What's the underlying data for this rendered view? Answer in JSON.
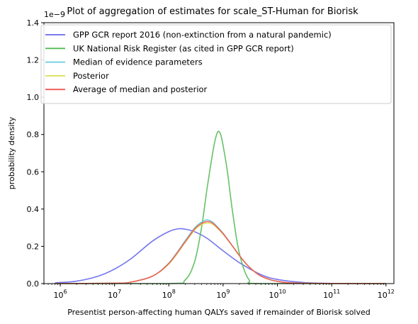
{
  "chart_data": {
    "type": "line",
    "title": "Plot of aggregation of estimates for scale_ST-Human for Biorisk",
    "xlabel": "Presentist person-affecting human QALYs saved if remainder of Biorisk solved",
    "ylabel": "probability density",
    "y_offset_text": "1e−9",
    "x_scale": "log",
    "xlim": [
      500000,
      1400000000000
    ],
    "ylim": [
      0,
      1.4
    ],
    "x_ticks": [
      {
        "value": 1000000,
        "base": "10",
        "exp": "6"
      },
      {
        "value": 10000000,
        "base": "10",
        "exp": "7"
      },
      {
        "value": 100000000,
        "base": "10",
        "exp": "8"
      },
      {
        "value": 1000000000,
        "base": "10",
        "exp": "9"
      },
      {
        "value": 10000000000,
        "base": "10",
        "exp": "10"
      },
      {
        "value": 100000000000,
        "base": "10",
        "exp": "11"
      },
      {
        "value": 1000000000000,
        "base": "10",
        "exp": "12"
      }
    ],
    "y_ticks": [
      {
        "value": 0.0,
        "label": "0.0"
      },
      {
        "value": 0.2,
        "label": "0.2"
      },
      {
        "value": 0.4,
        "label": "0.4"
      },
      {
        "value": 0.6,
        "label": "0.6"
      },
      {
        "value": 0.8,
        "label": "0.8"
      },
      {
        "value": 1.0,
        "label": "1.0"
      },
      {
        "value": 1.2,
        "label": "1.2"
      },
      {
        "value": 1.4,
        "label": "1.4"
      }
    ],
    "grid": false,
    "legend_position": "top-right",
    "series": [
      {
        "name": "GPP GCR report 2016 (non-extinction from a natural pandemic)",
        "color": "#6666ee",
        "x": [
          800000,
          2000000,
          5000000,
          10000000,
          20000000,
          50000000,
          100000000,
          150000000,
          200000000,
          300000000,
          500000000,
          1000000000,
          2000000000,
          5000000000,
          10000000000,
          30000000000,
          100000000000,
          300000000000,
          1000000000000
        ],
        "y": [
          0.004,
          0.013,
          0.04,
          0.078,
          0.133,
          0.228,
          0.279,
          0.294,
          0.292,
          0.278,
          0.244,
          0.176,
          0.112,
          0.048,
          0.022,
          0.006,
          0.001,
          0.0003,
          0.0001
        ]
      },
      {
        "name": "UK National Risk Register (as cited in GPP GCR report)",
        "color": "#55bb55",
        "x": [
          800000,
          100000000,
          200000000,
          300000000,
          400000000,
          500000000,
          600000000,
          700000000,
          800000000,
          900000000,
          1000000000,
          1200000000,
          1500000000,
          2000000000,
          3000000000,
          5000000000,
          1000000000000
        ],
        "y": [
          0,
          0.0,
          0.02,
          0.12,
          0.3,
          0.5,
          0.65,
          0.76,
          0.815,
          0.8,
          0.74,
          0.6,
          0.38,
          0.16,
          0.02,
          0.0,
          0.0
        ]
      },
      {
        "name": "Median of evidence parameters",
        "color": "#66ccdd",
        "x": [
          800000,
          10000000,
          20000000,
          50000000,
          100000000,
          200000000,
          300000000,
          400000000,
          500000000,
          600000000,
          700000000,
          1000000000,
          1500000000,
          2000000000,
          3000000000,
          5000000000,
          10000000000,
          30000000000,
          1000000000000
        ],
        "y": [
          0.0,
          0.002,
          0.008,
          0.04,
          0.11,
          0.23,
          0.3,
          0.33,
          0.342,
          0.335,
          0.32,
          0.27,
          0.2,
          0.15,
          0.09,
          0.04,
          0.012,
          0.002,
          0.0
        ]
      },
      {
        "name": "Posterior",
        "color": "#dddd55",
        "x": [
          800000,
          10000000,
          20000000,
          50000000,
          100000000,
          200000000,
          300000000,
          400000000,
          500000000,
          600000000,
          700000000,
          1000000000,
          1500000000,
          2000000000,
          3000000000,
          5000000000,
          10000000000,
          30000000000,
          1000000000000
        ],
        "y": [
          0.0,
          0.002,
          0.008,
          0.04,
          0.105,
          0.22,
          0.288,
          0.316,
          0.325,
          0.322,
          0.31,
          0.265,
          0.2,
          0.15,
          0.09,
          0.04,
          0.012,
          0.002,
          0.0
        ]
      },
      {
        "name": "Average of median and posterior",
        "color": "#ee5555",
        "x": [
          800000,
          10000000,
          20000000,
          50000000,
          100000000,
          200000000,
          300000000,
          400000000,
          500000000,
          600000000,
          700000000,
          1000000000,
          1500000000,
          2000000000,
          3000000000,
          5000000000,
          10000000000,
          30000000000,
          1000000000000
        ],
        "y": [
          0.0,
          0.002,
          0.008,
          0.04,
          0.108,
          0.225,
          0.294,
          0.323,
          0.333,
          0.329,
          0.315,
          0.268,
          0.2,
          0.15,
          0.09,
          0.04,
          0.012,
          0.002,
          0.0
        ]
      }
    ]
  }
}
